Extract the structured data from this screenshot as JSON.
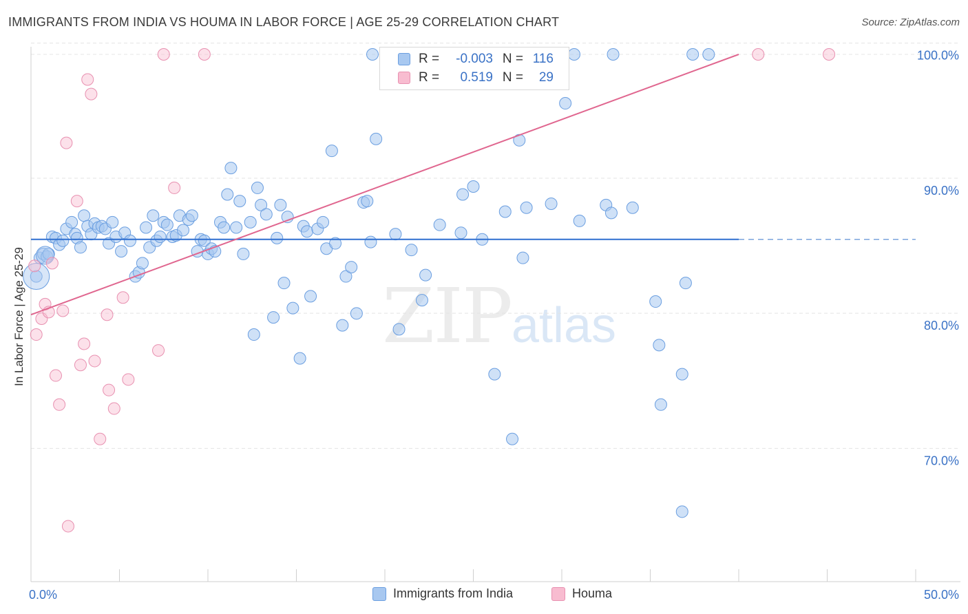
{
  "header": {
    "title": "IMMIGRANTS FROM INDIA VS HOUMA IN LABOR FORCE | AGE 25-29 CORRELATION CHART",
    "source": "Source: ZipAtlas.com"
  },
  "watermark": {
    "zip": "ZIP",
    "atlas": "atlas"
  },
  "legend_top": {
    "rows": [
      {
        "r_label": "R =",
        "r_value": "-0.003",
        "n_label": "N =",
        "n_value": "116",
        "color": "#a8c8f0",
        "border": "#6a9ee0"
      },
      {
        "r_label": "R =",
        "r_value": "0.519",
        "n_label": "N =",
        "n_value": "29",
        "color": "#f8bcd0",
        "border": "#e890b0"
      }
    ]
  },
  "legend_bottom": {
    "items": [
      {
        "label": "Immigrants from India",
        "color": "#a8c8f0",
        "border": "#6a9ee0"
      },
      {
        "label": "Houma",
        "color": "#f8bcd0",
        "border": "#e890b0"
      }
    ]
  },
  "chart_data": {
    "type": "scatter",
    "title": "IMMIGRANTS FROM INDIA VS HOUMA IN LABOR FORCE | AGE 25-29 CORRELATION CHART",
    "xlabel": "",
    "ylabel": "In Labor Force | Age 25-29",
    "xlim": [
      0,
      50
    ],
    "ylim": [
      61,
      101
    ],
    "x_tick_labels": [
      "0.0%",
      "50.0%"
    ],
    "y_ticks": [
      70,
      80,
      90,
      100
    ],
    "y_tick_labels": [
      "70.0%",
      "80.0%",
      "90.0%",
      "100.0%"
    ],
    "grid": true,
    "legend_position": "bottom",
    "colors": {
      "india": "#6a9ee0",
      "india_fill": "#a8c8f0",
      "houma": "#e890b0",
      "houma_fill": "#f8bcd0",
      "india_line": "#2f6fd0",
      "houma_line": "#e0668f"
    },
    "series": [
      {
        "name": "Immigrants from India",
        "points": [
          [
            0.3,
            83.2
          ],
          [
            0.5,
            84.6
          ],
          [
            0.7,
            84.9
          ],
          [
            0.9,
            84.7
          ],
          [
            1.0,
            84.9
          ],
          [
            1.2,
            86.2
          ],
          [
            1.4,
            86.1
          ],
          [
            1.6,
            85.6
          ],
          [
            1.8,
            85.9
          ],
          [
            2.0,
            86.8
          ],
          [
            2.3,
            87.3
          ],
          [
            2.5,
            86.4
          ],
          [
            2.6,
            86.1
          ],
          [
            2.8,
            85.4
          ],
          [
            3.0,
            87.8
          ],
          [
            3.2,
            87.0
          ],
          [
            3.4,
            86.4
          ],
          [
            3.6,
            87.2
          ],
          [
            3.8,
            86.9
          ],
          [
            4.0,
            87.0
          ],
          [
            4.2,
            86.8
          ],
          [
            4.4,
            85.7
          ],
          [
            4.6,
            87.3
          ],
          [
            4.8,
            86.2
          ],
          [
            5.1,
            85.1
          ],
          [
            5.3,
            86.5
          ],
          [
            5.6,
            85.9
          ],
          [
            5.9,
            83.2
          ],
          [
            6.1,
            83.5
          ],
          [
            6.3,
            84.2
          ],
          [
            6.5,
            86.9
          ],
          [
            6.7,
            85.4
          ],
          [
            6.9,
            87.8
          ],
          [
            7.1,
            85.9
          ],
          [
            7.3,
            86.2
          ],
          [
            7.5,
            87.3
          ],
          [
            7.7,
            87.1
          ],
          [
            8.0,
            86.2
          ],
          [
            8.2,
            86.3
          ],
          [
            8.4,
            87.8
          ],
          [
            8.6,
            86.7
          ],
          [
            8.9,
            87.5
          ],
          [
            9.1,
            87.8
          ],
          [
            9.4,
            85.1
          ],
          [
            9.6,
            86.0
          ],
          [
            9.8,
            85.9
          ],
          [
            10.0,
            84.9
          ],
          [
            10.2,
            85.3
          ],
          [
            10.4,
            85.1
          ],
          [
            10.7,
            87.3
          ],
          [
            10.9,
            86.9
          ],
          [
            11.1,
            89.4
          ],
          [
            11.3,
            91.4
          ],
          [
            11.6,
            86.9
          ],
          [
            11.8,
            88.9
          ],
          [
            12.0,
            84.9
          ],
          [
            12.4,
            87.3
          ],
          [
            12.6,
            78.8
          ],
          [
            12.8,
            89.9
          ],
          [
            13.0,
            88.6
          ],
          [
            13.3,
            87.9
          ],
          [
            13.7,
            80.1
          ],
          [
            13.9,
            86.1
          ],
          [
            14.1,
            88.6
          ],
          [
            14.3,
            82.7
          ],
          [
            14.5,
            87.7
          ],
          [
            14.8,
            80.8
          ],
          [
            15.2,
            77.0
          ],
          [
            15.4,
            87.0
          ],
          [
            15.6,
            86.6
          ],
          [
            15.8,
            81.7
          ],
          [
            16.2,
            86.8
          ],
          [
            16.5,
            87.3
          ],
          [
            16.7,
            85.3
          ],
          [
            17.0,
            92.7
          ],
          [
            17.2,
            85.7
          ],
          [
            17.6,
            79.5
          ],
          [
            17.8,
            83.2
          ],
          [
            18.1,
            83.9
          ],
          [
            18.4,
            80.4
          ],
          [
            18.8,
            88.8
          ],
          [
            19.0,
            88.9
          ],
          [
            19.2,
            85.8
          ],
          [
            19.5,
            93.6
          ],
          [
            19.3,
            100.0
          ],
          [
            20.6,
            86.4
          ],
          [
            20.8,
            79.2
          ],
          [
            21.5,
            85.2
          ],
          [
            22.1,
            81.4
          ],
          [
            22.3,
            83.3
          ],
          [
            23.1,
            87.1
          ],
          [
            24.3,
            86.5
          ],
          [
            24.4,
            89.4
          ],
          [
            25.0,
            90.0
          ],
          [
            25.5,
            86.0
          ],
          [
            26.2,
            75.8
          ],
          [
            26.8,
            88.1
          ],
          [
            27.2,
            70.9
          ],
          [
            27.6,
            93.5
          ],
          [
            27.8,
            84.6
          ],
          [
            28.0,
            88.4
          ],
          [
            29.4,
            88.7
          ],
          [
            30.2,
            96.3
          ],
          [
            30.7,
            100.0
          ],
          [
            31.0,
            87.4
          ],
          [
            32.5,
            88.6
          ],
          [
            32.8,
            88.0
          ],
          [
            32.9,
            100.0
          ],
          [
            34.0,
            88.4
          ],
          [
            35.3,
            81.3
          ],
          [
            35.5,
            78.0
          ],
          [
            35.6,
            73.5
          ],
          [
            36.8,
            75.8
          ],
          [
            37.0,
            82.7
          ],
          [
            37.4,
            100.0
          ],
          [
            38.3,
            100.0
          ],
          [
            36.8,
            65.4
          ]
        ]
      },
      {
        "name": "Houma",
        "points": [
          [
            0.2,
            84.0
          ],
          [
            0.3,
            78.8
          ],
          [
            0.6,
            80.0
          ],
          [
            0.8,
            81.1
          ],
          [
            1.0,
            80.5
          ],
          [
            1.2,
            84.2
          ],
          [
            1.4,
            75.7
          ],
          [
            1.6,
            73.5
          ],
          [
            1.8,
            80.6
          ],
          [
            2.0,
            93.3
          ],
          [
            2.1,
            64.3
          ],
          [
            2.6,
            88.9
          ],
          [
            2.8,
            76.5
          ],
          [
            3.0,
            78.1
          ],
          [
            3.2,
            98.1
          ],
          [
            3.4,
            97.0
          ],
          [
            3.6,
            76.8
          ],
          [
            3.9,
            70.9
          ],
          [
            4.3,
            80.3
          ],
          [
            4.4,
            74.6
          ],
          [
            4.7,
            73.2
          ],
          [
            5.2,
            81.6
          ],
          [
            5.5,
            75.4
          ],
          [
            7.2,
            77.6
          ],
          [
            7.5,
            100.0
          ],
          [
            8.1,
            89.9
          ],
          [
            9.8,
            100.0
          ],
          [
            41.1,
            100.0
          ],
          [
            45.1,
            100.0
          ]
        ]
      }
    ],
    "trend_lines": [
      {
        "name": "Immigrants from India",
        "x": [
          0,
          40,
          50
        ],
        "y": [
          86.0,
          86.0,
          86.0
        ],
        "dashed_from_x": 40
      },
      {
        "name": "Houma",
        "x": [
          0,
          40.0
        ],
        "y": [
          80.3,
          100.0
        ]
      }
    ]
  }
}
